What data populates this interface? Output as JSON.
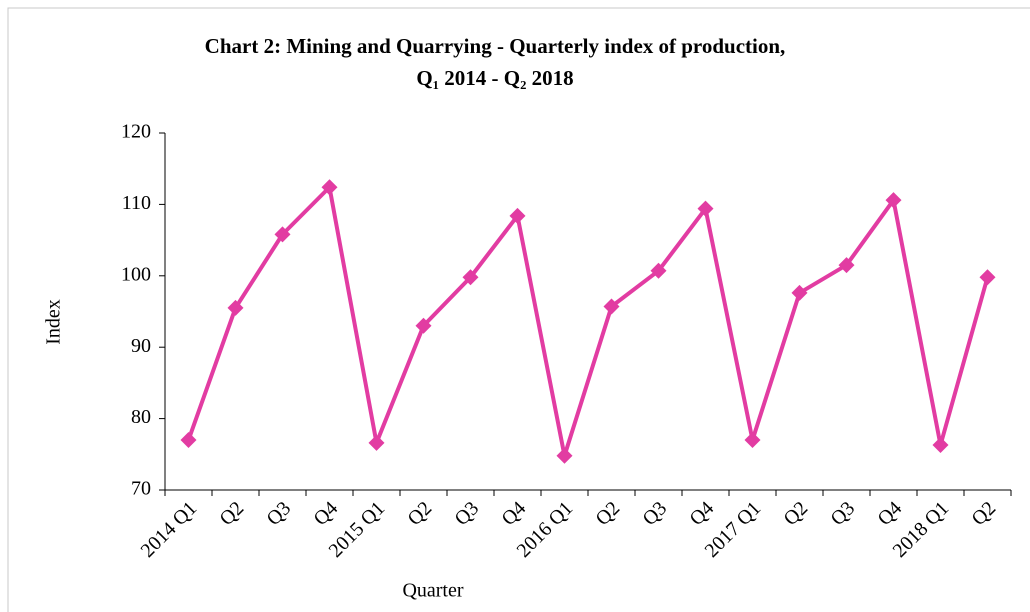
{
  "chart_data": {
    "type": "line",
    "title": [
      "Chart 2: Mining and Quarrying - Quarterly index of production,",
      "Q₁ 2014  - Q₂ 2018"
    ],
    "xlabel": "Quarter",
    "ylabel": "Index",
    "categories": [
      "2014 Q1",
      "Q2",
      "Q3",
      "Q4",
      "2015 Q1",
      "Q2",
      "Q3",
      "Q4",
      "2016 Q1",
      "Q2",
      "Q3",
      "Q4",
      "2017 Q1",
      "Q2",
      "Q3",
      "Q4",
      "2018 Q1",
      "Q2"
    ],
    "series": [
      {
        "name": "Index",
        "color": "#e23ca2",
        "values": [
          77.0,
          95.5,
          105.8,
          112.4,
          76.6,
          93.0,
          99.8,
          108.4,
          74.8,
          95.7,
          100.7,
          109.4,
          77.0,
          97.6,
          101.5,
          110.6,
          76.3,
          99.8
        ]
      }
    ],
    "ylim": [
      70,
      120
    ],
    "yticks": [
      70,
      80,
      90,
      100,
      110,
      120
    ],
    "grid": false,
    "legend": false
  }
}
